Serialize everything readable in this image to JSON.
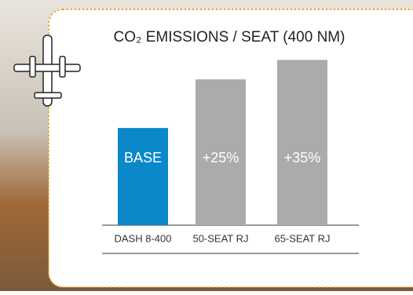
{
  "chart_data": {
    "type": "bar",
    "title": "CO₂ EMISSIONS / SEAT (400 NM)",
    "categories": [
      "DASH 8-400",
      "50-SEAT RJ",
      "65-SEAT RJ"
    ],
    "values": [
      0,
      25,
      35
    ],
    "value_labels": [
      "BASE",
      "+25%",
      "+35%"
    ],
    "colors": [
      "#0a88c9",
      "#ababab",
      "#ababab"
    ],
    "ylim": [
      -50,
      40
    ]
  }
}
